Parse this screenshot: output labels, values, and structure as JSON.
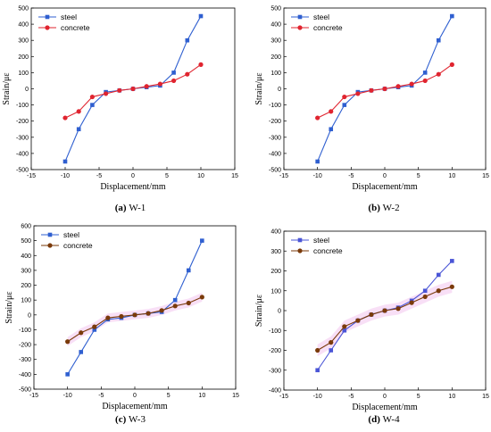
{
  "colors": {
    "steel": "#2f5fd0",
    "concrete": "#e0242f",
    "concrete_w3": "#7a3a0a",
    "concrete_w4": "#7a3a0a",
    "steel_w4": "#4a55d6",
    "band": "#f3c4ee"
  },
  "chart_data": [
    {
      "type": "line",
      "panel_label": "(a)",
      "caption": "W-1",
      "xlabel": "Displacement/mm",
      "ylabel": "Strain/με",
      "xlim": [
        -15,
        15
      ],
      "ylim": [
        -500,
        500
      ],
      "xticks": [
        -15,
        -10,
        -5,
        0,
        5,
        10,
        15
      ],
      "yticks": [
        -500,
        -400,
        -300,
        -200,
        -100,
        0,
        100,
        200,
        300,
        400,
        500
      ],
      "grid": false,
      "legend": "top-left",
      "band": false,
      "series": [
        {
          "name": "steel",
          "marker": "square",
          "color_key": "steel",
          "x": [
            -10,
            -8,
            -6,
            -4,
            -2,
            0,
            2,
            4,
            6,
            8,
            10
          ],
          "y": [
            -450,
            -250,
            -100,
            -20,
            -10,
            0,
            10,
            20,
            100,
            300,
            450
          ]
        },
        {
          "name": "concrete",
          "marker": "circle",
          "color_key": "concrete",
          "x": [
            -10,
            -8,
            -6,
            -4,
            -2,
            0,
            2,
            4,
            6,
            8,
            10
          ],
          "y": [
            -180,
            -140,
            -50,
            -30,
            -10,
            0,
            15,
            30,
            50,
            90,
            150
          ]
        }
      ]
    },
    {
      "type": "line",
      "panel_label": "(b)",
      "caption": "W-2",
      "xlabel": "Displacement/mm",
      "ylabel": "Strain/με",
      "xlim": [
        -15,
        15
      ],
      "ylim": [
        -500,
        500
      ],
      "xticks": [
        -15,
        -10,
        -5,
        0,
        5,
        10,
        15
      ],
      "yticks": [
        -500,
        -400,
        -300,
        -200,
        -100,
        0,
        100,
        200,
        300,
        400,
        500
      ],
      "grid": false,
      "legend": "top-left",
      "band": false,
      "series": [
        {
          "name": "steel",
          "marker": "square",
          "color_key": "steel",
          "x": [
            -10,
            -8,
            -6,
            -4,
            -2,
            0,
            2,
            4,
            6,
            8,
            10
          ],
          "y": [
            -450,
            -250,
            -100,
            -20,
            -10,
            0,
            10,
            20,
            100,
            300,
            450
          ]
        },
        {
          "name": "concrete",
          "marker": "circle",
          "color_key": "concrete",
          "x": [
            -10,
            -8,
            -6,
            -4,
            -2,
            0,
            2,
            4,
            6,
            8,
            10
          ],
          "y": [
            -180,
            -140,
            -50,
            -30,
            -10,
            0,
            15,
            30,
            50,
            90,
            150
          ]
        }
      ]
    },
    {
      "type": "line",
      "panel_label": "(c)",
      "caption": "W-3",
      "xlabel": "Displacement/mm",
      "ylabel": "Strain/με",
      "xlim": [
        -15,
        15
      ],
      "ylim": [
        -500,
        600
      ],
      "xticks": [
        -15,
        -10,
        -5,
        0,
        5,
        10,
        15
      ],
      "yticks": [
        -500,
        -400,
        -300,
        -200,
        -100,
        0,
        100,
        200,
        300,
        400,
        500,
        600
      ],
      "grid": false,
      "legend": "top-left",
      "band": true,
      "series": [
        {
          "name": "steel",
          "marker": "square",
          "color_key": "steel",
          "x": [
            -10,
            -8,
            -6,
            -4,
            -2,
            0,
            2,
            4,
            6,
            8,
            10
          ],
          "y": [
            -400,
            -250,
            -100,
            -30,
            -20,
            0,
            10,
            20,
            100,
            300,
            500
          ]
        },
        {
          "name": "concrete",
          "marker": "circle",
          "color_key": "concrete_w3",
          "x": [
            -10,
            -8,
            -6,
            -4,
            -2,
            0,
            2,
            4,
            6,
            8,
            10
          ],
          "y": [
            -180,
            -120,
            -80,
            -20,
            -10,
            0,
            10,
            30,
            60,
            80,
            120
          ]
        }
      ]
    },
    {
      "type": "line",
      "panel_label": "(d)",
      "caption": "W-4",
      "xlabel": "Displacement/mm",
      "ylabel": "Strain/με",
      "xlim": [
        -15,
        15
      ],
      "ylim": [
        -400,
        400
      ],
      "xticks": [
        -15,
        -10,
        -5,
        0,
        5,
        10,
        15
      ],
      "yticks": [
        -400,
        -300,
        -200,
        -100,
        0,
        100,
        200,
        300,
        400
      ],
      "grid": false,
      "legend": "top-left",
      "band": true,
      "series": [
        {
          "name": "steel",
          "marker": "square",
          "color_key": "steel_w4",
          "x": [
            -10,
            -8,
            -6,
            -4,
            -2,
            0,
            2,
            4,
            6,
            8,
            10
          ],
          "y": [
            -300,
            -200,
            -100,
            -50,
            -20,
            0,
            15,
            50,
            100,
            180,
            250
          ]
        },
        {
          "name": "concrete",
          "marker": "circle",
          "color_key": "concrete_w4",
          "x": [
            -10,
            -8,
            -6,
            -4,
            -2,
            0,
            2,
            4,
            6,
            8,
            10
          ],
          "y": [
            -200,
            -160,
            -80,
            -50,
            -20,
            0,
            10,
            40,
            70,
            100,
            120
          ]
        }
      ]
    }
  ]
}
